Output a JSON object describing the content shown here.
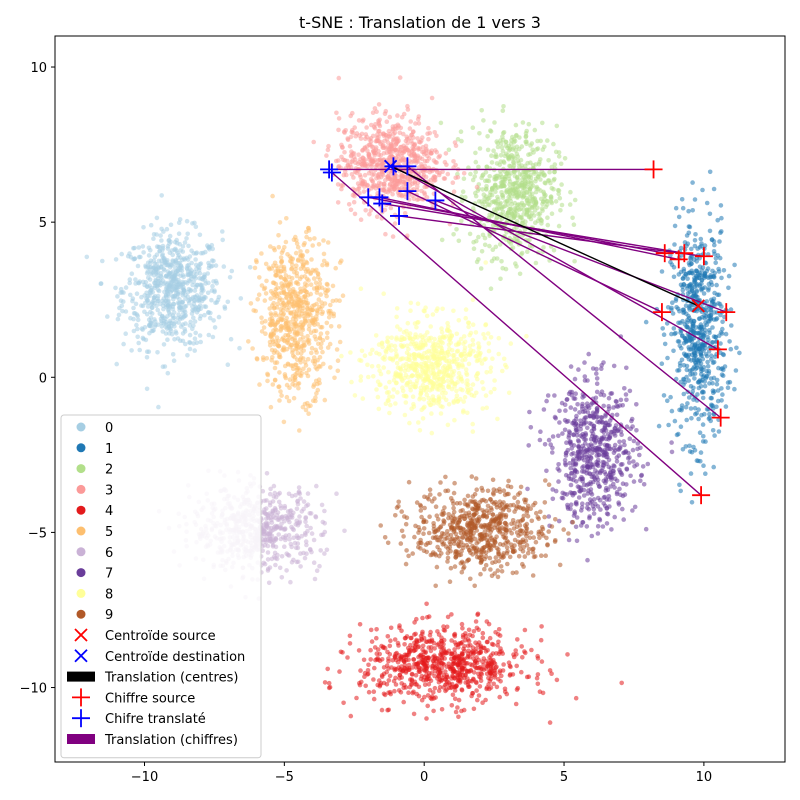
{
  "chart_data": {
    "type": "scatter",
    "title": "t-SNE : Translation de 1 vers 3",
    "xlabel": "",
    "ylabel": "",
    "xlim": [
      -13.2,
      12.9
    ],
    "ylim": [
      -12.4,
      11.0
    ],
    "xticks": [
      -10,
      -5,
      0,
      5,
      10
    ],
    "yticks": [
      -10,
      -5,
      0,
      5,
      10
    ],
    "grid": false,
    "legend_placement": "lower-left",
    "clusters": [
      {
        "label": "0",
        "color": "#a6cee3",
        "center": [
          -9.0,
          2.8
        ],
        "spread": [
          1.6,
          1.7
        ],
        "count": 700
      },
      {
        "label": "1",
        "color": "#1f78b4",
        "center": [
          9.8,
          1.5
        ],
        "spread": [
          0.9,
          3.2
        ],
        "count": 650
      },
      {
        "label": "2",
        "color": "#b2df8a",
        "center": [
          3.2,
          6.0
        ],
        "spread": [
          1.4,
          1.9
        ],
        "count": 650
      },
      {
        "label": "3",
        "color": "#fb9a99",
        "center": [
          -1.2,
          6.9
        ],
        "spread": [
          1.7,
          1.4
        ],
        "count": 700
      },
      {
        "label": "4",
        "color": "#e31a1c",
        "center": [
          0.7,
          -9.3
        ],
        "spread": [
          2.7,
          1.1
        ],
        "count": 750
      },
      {
        "label": "5",
        "color": "#fdbf6f",
        "center": [
          -4.6,
          2.0
        ],
        "spread": [
          1.2,
          2.3
        ],
        "count": 650
      },
      {
        "label": "6",
        "color": "#cab2d6",
        "center": [
          -6.0,
          -4.9
        ],
        "spread": [
          2.1,
          1.2
        ],
        "count": 600
      },
      {
        "label": "7",
        "color": "#6a3d9a",
        "center": [
          6.1,
          -2.5
        ],
        "spread": [
          1.4,
          2.1
        ],
        "count": 600
      },
      {
        "label": "8",
        "color": "#ffff99",
        "center": [
          0.2,
          0.4
        ],
        "spread": [
          1.9,
          1.4
        ],
        "count": 650
      },
      {
        "label": "9",
        "color": "#b15928",
        "center": [
          2.0,
          -4.9
        ],
        "spread": [
          2.2,
          1.2
        ],
        "count": 650
      }
    ],
    "centroid_source": {
      "x": 9.8,
      "y": 2.3,
      "color": "#ff0000"
    },
    "centroid_destination": {
      "x": -1.2,
      "y": 6.8,
      "color": "#0000ff"
    },
    "digit_pairs": [
      {
        "source": [
          8.2,
          6.7
        ],
        "translated": [
          -3.4,
          6.7
        ]
      },
      {
        "source": [
          8.6,
          4.0
        ],
        "translated": [
          -2.0,
          5.8
        ]
      },
      {
        "source": [
          9.1,
          3.8
        ],
        "translated": [
          -1.6,
          5.8
        ]
      },
      {
        "source": [
          9.3,
          4.0
        ],
        "translated": [
          -1.5,
          5.6
        ]
      },
      {
        "source": [
          10.0,
          3.9
        ],
        "translated": [
          -0.9,
          5.2
        ]
      },
      {
        "source": [
          8.5,
          2.1
        ],
        "translated": [
          -0.6,
          6.0
        ]
      },
      {
        "source": [
          10.8,
          2.1
        ],
        "translated": [
          0.4,
          5.7
        ]
      },
      {
        "source": [
          10.5,
          0.9
        ],
        "translated": [
          -1.1,
          6.8
        ]
      },
      {
        "source": [
          10.6,
          -1.3
        ],
        "translated": [
          -0.6,
          6.8
        ]
      },
      {
        "source": [
          9.9,
          -3.8
        ],
        "translated": [
          -3.3,
          6.6
        ]
      }
    ],
    "legend": [
      {
        "label": "0",
        "kind": "dot",
        "color": "#a6cee3"
      },
      {
        "label": "1",
        "kind": "dot",
        "color": "#1f78b4"
      },
      {
        "label": "2",
        "kind": "dot",
        "color": "#b2df8a"
      },
      {
        "label": "3",
        "kind": "dot",
        "color": "#fb9a99"
      },
      {
        "label": "4",
        "kind": "dot",
        "color": "#e31a1c"
      },
      {
        "label": "5",
        "kind": "dot",
        "color": "#fdbf6f"
      },
      {
        "label": "6",
        "kind": "dot",
        "color": "#cab2d6"
      },
      {
        "label": "7",
        "kind": "dot",
        "color": "#6a3d9a"
      },
      {
        "label": "8",
        "kind": "dot",
        "color": "#ffff99"
      },
      {
        "label": "9",
        "kind": "dot",
        "color": "#b15928"
      },
      {
        "label": "Centroïde source",
        "kind": "x",
        "color": "#ff0000"
      },
      {
        "label": "Centroïde destination",
        "kind": "x",
        "color": "#0000ff"
      },
      {
        "label": "Translation (centres)",
        "kind": "patch",
        "color": "#000000"
      },
      {
        "label": "Chiffre source",
        "kind": "plus",
        "color": "#ff0000"
      },
      {
        "label": "Chifre translaté",
        "kind": "plus",
        "color": "#0000ff"
      },
      {
        "label": "Translation (chiffres)",
        "kind": "patch",
        "color": "#800080"
      }
    ]
  }
}
